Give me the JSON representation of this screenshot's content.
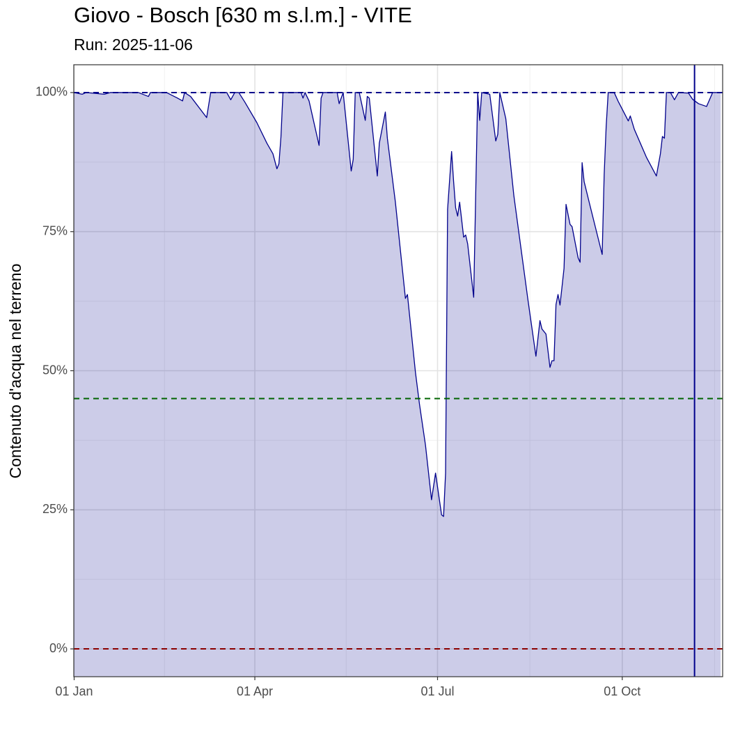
{
  "chart_data": {
    "type": "area",
    "title": "Giovo - Bosch [630 m s.l.m.] - VITE",
    "subtitle": "Run: 2025-11-06",
    "ylabel": "Contenuto d'acqua nel terreno",
    "x": [
      "01 Jan",
      "05 Jan",
      "07 Jan",
      "16 Jan",
      "19 Jan",
      "02 Feb",
      "07 Feb",
      "08 Feb",
      "16 Feb",
      "21 Feb",
      "24 Feb",
      "25 Feb",
      "28 Feb",
      "08 Mar",
      "10 Mar",
      "18 Mar",
      "20 Mar",
      "22 Mar",
      "24 Mar",
      "27 Mar",
      "02 Apr",
      "07 Apr",
      "10 Apr",
      "12 Apr",
      "13 Apr",
      "14 Apr",
      "15 Apr",
      "24 Apr",
      "25 Apr",
      "26 Apr",
      "28 Apr",
      "03 May",
      "04 May",
      "05 May",
      "12 May",
      "13 May",
      "15 May",
      "19 May",
      "20 May",
      "21 May",
      "23 May",
      "26 May",
      "27 May",
      "28 May",
      "01 Jun",
      "02 Jun",
      "05 Jun",
      "06 Jun",
      "10 Jun",
      "15 Jun",
      "16 Jun",
      "20 Jun",
      "22 Jun",
      "25 Jun",
      "28 Jun",
      "30 Jun",
      "03 Jul",
      "04 Jul",
      "05 Jul",
      "06 Jul",
      "08 Jul",
      "09 Jul",
      "10 Jul",
      "11 Jul",
      "12 Jul",
      "14 Jul",
      "15 Jul",
      "16 Jul",
      "19 Jul",
      "21 Jul",
      "22 Jul",
      "23 Jul",
      "27 Jul",
      "30 Jul",
      "31 Jul",
      "01 Aug",
      "04 Aug",
      "08 Aug",
      "15 Aug",
      "19 Aug",
      "21 Aug",
      "22 Aug",
      "24 Aug",
      "26 Aug",
      "27 Aug",
      "28 Aug",
      "29 Aug",
      "30 Aug",
      "31 Aug",
      "02 Sep",
      "03 Sep",
      "05 Sep",
      "06 Sep",
      "09 Sep",
      "10 Sep",
      "11 Sep",
      "12 Sep",
      "15 Sep",
      "21 Sep",
      "22 Sep",
      "23 Sep",
      "24 Sep",
      "27 Sep",
      "29 Sep",
      "04 Oct",
      "05 Oct",
      "07 Oct",
      "13 Oct",
      "18 Oct",
      "20 Oct",
      "21 Oct",
      "22 Oct",
      "23 Oct",
      "25 Oct",
      "27 Oct",
      "29 Oct",
      "03 Nov",
      "05 Nov",
      "08 Nov",
      "12 Nov",
      "15 Nov",
      "19 Nov"
    ],
    "values": [
      100,
      99.7,
      100,
      99.7,
      100,
      100,
      99.3,
      100,
      100,
      99.1,
      98.5,
      100,
      99.3,
      95.5,
      100,
      100,
      98.7,
      100,
      100,
      98.3,
      94.6,
      90.9,
      89,
      86.3,
      87.2,
      92,
      100,
      100,
      99,
      100,
      98.5,
      90.5,
      99,
      100,
      100,
      98,
      100,
      85.9,
      88,
      100,
      100,
      95,
      99.3,
      99,
      85,
      90.9,
      96.5,
      91.8,
      80.3,
      63,
      63.7,
      49.7,
      44,
      36.6,
      26.8,
      31.6,
      24.1,
      23.8,
      31.6,
      79,
      89.4,
      84,
      79.3,
      77.8,
      80.3,
      74,
      74.4,
      72.8,
      63.2,
      100,
      95,
      100,
      99.7,
      91.3,
      92.5,
      100,
      95.3,
      81.5,
      62.8,
      52.6,
      59,
      57.5,
      56.6,
      50.6,
      51.8,
      51.8,
      61.9,
      63.7,
      61.8,
      68.4,
      79.9,
      76.3,
      75.9,
      70.3,
      69.5,
      87.4,
      84,
      79.6,
      70.9,
      85.3,
      94,
      100,
      100,
      98.4,
      94.9,
      95.8,
      93.4,
      88.4,
      85,
      89,
      92.1,
      91.8,
      100,
      100,
      98.7,
      100,
      99.9,
      98.8,
      98,
      97.5,
      100,
      100
    ],
    "line_color": "#00008b",
    "fill_color": "#00008b",
    "fill_alpha": 0.2,
    "xlim": [
      "01 Jan",
      "20 Nov"
    ],
    "xticks": [
      "01 Jan",
      "01 Apr",
      "01 Jul",
      "01 Oct"
    ],
    "ylim": [
      -5,
      105
    ],
    "yticks": [
      {
        "value": 0,
        "label": "0%"
      },
      {
        "value": 25,
        "label": "25%"
      },
      {
        "value": 50,
        "label": "50%"
      },
      {
        "value": 75,
        "label": "75%"
      },
      {
        "value": 100,
        "label": "100%"
      }
    ],
    "grid": true,
    "hlines": [
      {
        "value": 100,
        "color": "#00008b"
      },
      {
        "value": 45,
        "color": "#006400"
      },
      {
        "value": 0,
        "color": "#8b0000"
      }
    ],
    "vline": {
      "x": "06 Nov",
      "color": "#00008b"
    }
  }
}
